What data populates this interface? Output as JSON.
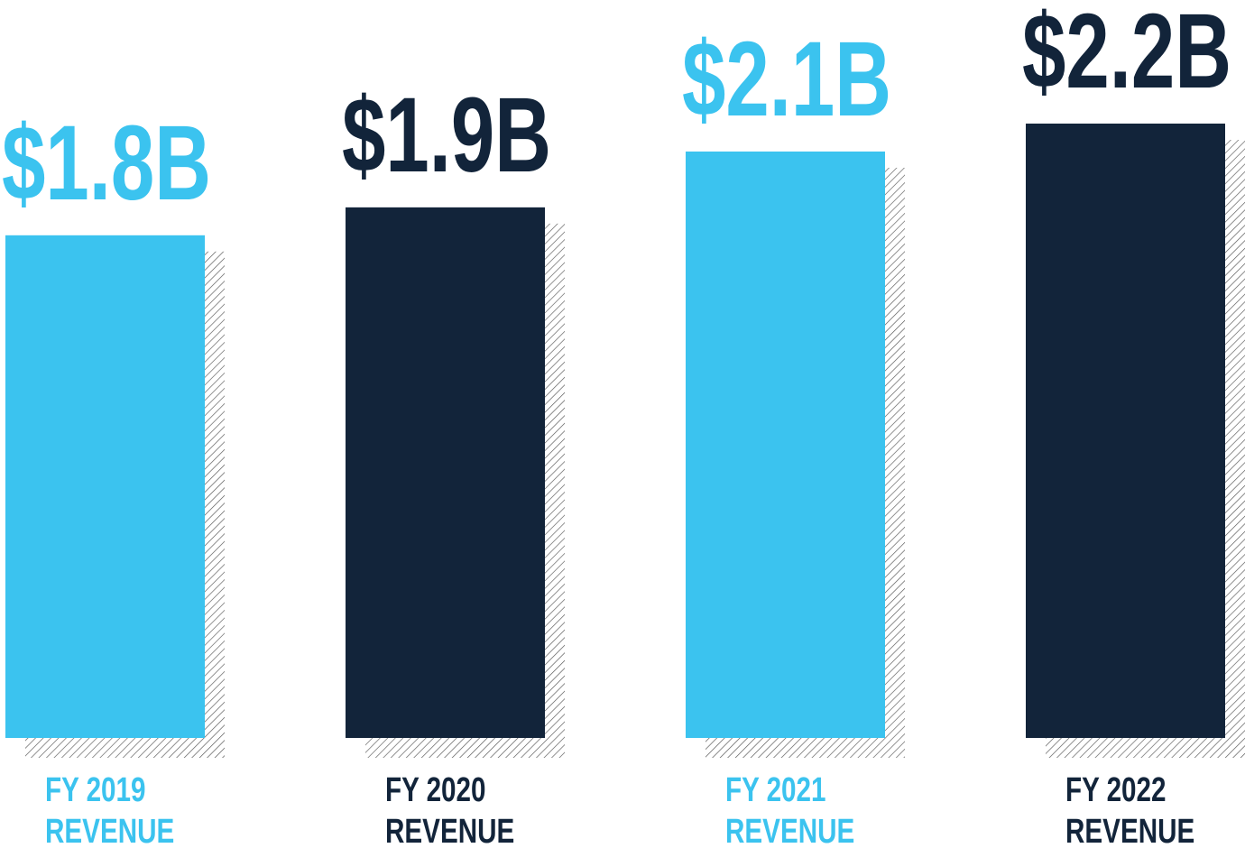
{
  "chart_data": {
    "type": "bar",
    "categories": [
      "FY 2019\nREVENUE",
      "FY 2020\nREVENUE",
      "FY 2021\nREVENUE",
      "FY 2022\nREVENUE"
    ],
    "values": [
      1.8,
      1.9,
      2.1,
      2.2
    ],
    "value_labels": [
      "$1.8B",
      "$1.9B",
      "$2.1B",
      "$2.2B"
    ],
    "colors": [
      "#3bc3ef",
      "#12243a",
      "#3bc3ef",
      "#12243a"
    ]
  }
}
